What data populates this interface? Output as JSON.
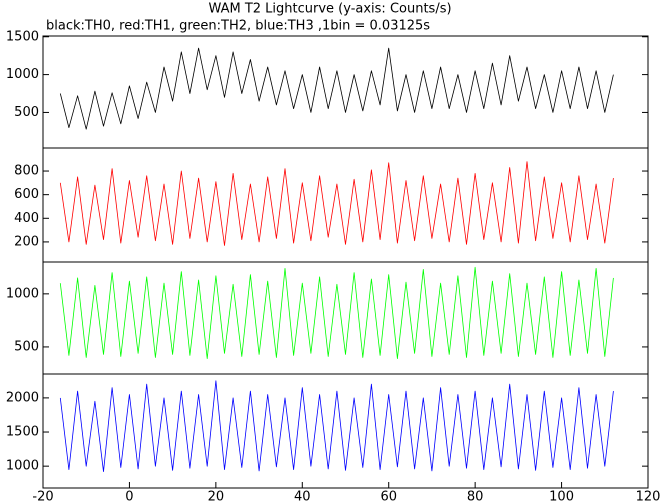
{
  "chart_data": [
    {
      "type": "line",
      "title": "WAM T2 Lightcurve (y-axis: Counts/s)",
      "subtitle": "black:TH0, red:TH1, green:TH2, blue:TH3 ,1bin = 0.03125s",
      "x": [
        -16,
        -14,
        -12,
        -10,
        -8,
        -6,
        -4,
        -2,
        0,
        2,
        4,
        6,
        8,
        10,
        12,
        14,
        16,
        18,
        20,
        22,
        24,
        26,
        28,
        30,
        32,
        34,
        36,
        38,
        40,
        42,
        44,
        46,
        48,
        50,
        52,
        54,
        56,
        58,
        60,
        62,
        64,
        66,
        68,
        70,
        72,
        74,
        76,
        78,
        80,
        82,
        84,
        86,
        88,
        90,
        92,
        94,
        96,
        98,
        100,
        102,
        104,
        106,
        108,
        110,
        112
      ],
      "xlim": [
        -20,
        120
      ],
      "ylim": [
        30,
        1510
      ],
      "yticks": [
        500,
        1000,
        1500
      ],
      "series": [
        {
          "color": "#000000",
          "values": [
            750,
            300,
            720,
            280,
            780,
            320,
            760,
            350,
            850,
            420,
            900,
            500,
            1100,
            650,
            1300,
            750,
            1350,
            800,
            1250,
            700,
            1300,
            750,
            1200,
            650,
            1100,
            600,
            1050,
            550,
            1000,
            500,
            1100,
            550,
            1050,
            500,
            1000,
            520,
            1050,
            600,
            1350,
            520,
            1000,
            500,
            1050,
            550,
            1100,
            550,
            1000,
            500,
            1050,
            550,
            1150,
            600,
            1250,
            650,
            1100,
            550,
            1000,
            500,
            1050,
            550,
            1100,
            550,
            1050,
            500,
            1000
          ]
        }
      ]
    },
    {
      "type": "line",
      "x": [
        -16,
        -14,
        -12,
        -10,
        -8,
        -6,
        -4,
        -2,
        0,
        2,
        4,
        6,
        8,
        10,
        12,
        14,
        16,
        18,
        20,
        22,
        24,
        26,
        28,
        30,
        32,
        34,
        36,
        38,
        40,
        42,
        44,
        46,
        48,
        50,
        52,
        54,
        56,
        58,
        60,
        62,
        64,
        66,
        68,
        70,
        72,
        74,
        76,
        78,
        80,
        82,
        84,
        86,
        88,
        90,
        92,
        94,
        96,
        98,
        100,
        102,
        104,
        106,
        108,
        110,
        112
      ],
      "xlim": [
        -20,
        120
      ],
      "ylim": [
        30,
        995
      ],
      "yticks": [
        200,
        400,
        600,
        800
      ],
      "series": [
        {
          "color": "#ff0000",
          "values": [
            700,
            200,
            750,
            180,
            680,
            220,
            820,
            190,
            720,
            240,
            760,
            210,
            690,
            180,
            800,
            230,
            740,
            200,
            710,
            170,
            780,
            220,
            690,
            200,
            750,
            230,
            820,
            190,
            700,
            210,
            760,
            240,
            690,
            180,
            730,
            200,
            810,
            220,
            870,
            190,
            720,
            210,
            760,
            230,
            690,
            200,
            740,
            180,
            780,
            220,
            700,
            200,
            830,
            190,
            880,
            210,
            750,
            230,
            700,
            200,
            760,
            220,
            690,
            190,
            740
          ]
        }
      ]
    },
    {
      "type": "line",
      "x": [
        -16,
        -14,
        -12,
        -10,
        -8,
        -6,
        -4,
        -2,
        0,
        2,
        4,
        6,
        8,
        10,
        12,
        14,
        16,
        18,
        20,
        22,
        24,
        26,
        28,
        30,
        32,
        34,
        36,
        38,
        40,
        42,
        44,
        46,
        48,
        50,
        52,
        54,
        56,
        58,
        60,
        62,
        64,
        66,
        68,
        70,
        72,
        74,
        76,
        78,
        80,
        82,
        84,
        86,
        88,
        90,
        92,
        94,
        96,
        98,
        100,
        102,
        104,
        106,
        108,
        110,
        112
      ],
      "xlim": [
        -20,
        120
      ],
      "ylim": [
        245,
        1300
      ],
      "yticks": [
        500,
        1000
      ],
      "series": [
        {
          "color": "#00ff00",
          "values": [
            1100,
            420,
            1150,
            400,
            1080,
            430,
            1200,
            410,
            1120,
            440,
            1160,
            400,
            1100,
            430,
            1210,
            420,
            1130,
            390,
            1170,
            440,
            1090,
            410,
            1180,
            430,
            1120,
            400,
            1240,
            420,
            1100,
            440,
            1160,
            410,
            1090,
            430,
            1200,
            400,
            1140,
            420,
            1180,
            390,
            1110,
            440,
            1230,
            410,
            1100,
            430,
            1170,
            400,
            1250,
            420,
            1120,
            440,
            1190,
            410,
            1100,
            430,
            1160,
            400,
            1210,
            420,
            1130,
            440,
            1240,
            410,
            1150
          ]
        }
      ]
    },
    {
      "type": "line",
      "x": [
        -16,
        -14,
        -12,
        -10,
        -8,
        -6,
        -4,
        -2,
        0,
        2,
        4,
        6,
        8,
        10,
        12,
        14,
        16,
        18,
        20,
        22,
        24,
        26,
        28,
        30,
        32,
        34,
        36,
        38,
        40,
        42,
        44,
        46,
        48,
        50,
        52,
        54,
        56,
        58,
        60,
        62,
        64,
        66,
        68,
        70,
        72,
        74,
        76,
        78,
        80,
        82,
        84,
        86,
        88,
        90,
        92,
        94,
        96,
        98,
        100,
        102,
        104,
        106,
        108,
        110,
        112
      ],
      "xlim": [
        -20,
        120
      ],
      "xticks": [
        -20,
        0,
        20,
        40,
        60,
        80,
        100,
        120
      ],
      "ylim": [
        680,
        2350
      ],
      "yticks": [
        1000,
        1500,
        2000
      ],
      "series": [
        {
          "color": "#0000ff",
          "values": [
            2000,
            950,
            2100,
            1000,
            1950,
            920,
            2150,
            980,
            2050,
            960,
            2200,
            1000,
            2000,
            940,
            2100,
            970,
            2050,
            1000,
            2250,
            950,
            2000,
            980,
            2100,
            930,
            2050,
            990,
            2000,
            950,
            2150,
            1000,
            2050,
            960,
            2100,
            940,
            2000,
            980,
            2200,
            950,
            2050,
            990,
            2100,
            960,
            2000,
            930,
            2150,
            1000,
            2050,
            970,
            2100,
            950,
            2000,
            990,
            2200,
            960,
            2050,
            940,
            2100,
            980,
            2000,
            950,
            2150,
            970,
            2050,
            1000,
            2100
          ]
        }
      ]
    }
  ]
}
